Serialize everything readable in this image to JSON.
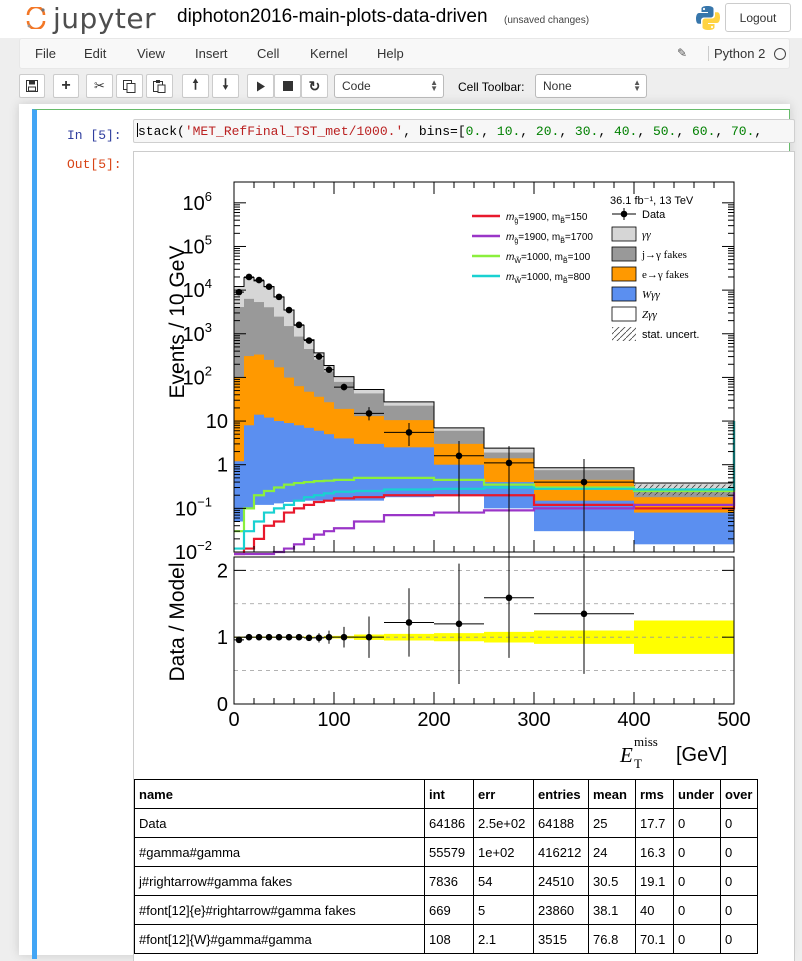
{
  "header": {
    "logo_text": "jupyter",
    "notebook_title": "diphoton2016-main-plots-data-driven",
    "save_status": "(unsaved changes)",
    "logout_label": "Logout"
  },
  "menu": {
    "items": [
      "File",
      "Edit",
      "View",
      "Insert",
      "Cell",
      "Kernel",
      "Help"
    ],
    "kernel_name": "Python 2"
  },
  "toolbar": {
    "cell_type": "Code",
    "cell_toolbar_label": "Cell Toolbar:",
    "cell_toolbar_value": "None"
  },
  "cell": {
    "in_prompt": "In [5]:",
    "out_prompt": "Out[5]:",
    "code_prefix": "stack(",
    "code_string": "'MET_RefFinal_TST_met/1000.'",
    "code_mid": ", bins=[",
    "code_bins": [
      "0.",
      "10.",
      "20.",
      "30.",
      "40.",
      "50.",
      "60.",
      "70."
    ]
  },
  "chart_data": {
    "type": "bar",
    "subtype": "stacked-histogram-with-ratio",
    "annotation": "36.1 fb⁻¹, 13 TeV",
    "top_ylabel": "Events / 10 GeV",
    "bottom_ylabel": "Data / Model",
    "xlabel_symbol": "E",
    "xlabel_sub": "T",
    "xlabel_sup": "miss",
    "xlabel_unit": "[GeV]",
    "xlim": [
      0,
      500
    ],
    "ylim_top": [
      0.01,
      3000000
    ],
    "yscale_top": "log",
    "ylim_bottom": [
      0,
      2.2
    ],
    "x_ticks": [
      "0",
      "100",
      "200",
      "300",
      "400",
      "500"
    ],
    "y_ticks_top": [
      {
        "v": 1000000,
        "base": "10",
        "exp": "6"
      },
      {
        "v": 100000,
        "base": "10",
        "exp": "5"
      },
      {
        "v": 10000,
        "base": "10",
        "exp": "4"
      },
      {
        "v": 1000,
        "base": "10",
        "exp": "3"
      },
      {
        "v": 100,
        "base": "10",
        "exp": "2"
      },
      {
        "v": 10,
        "base": "10",
        "exp": ""
      },
      {
        "v": 1,
        "base": "1",
        "exp": ""
      },
      {
        "v": 0.1,
        "base": "10",
        "exp": "−1"
      },
      {
        "v": 0.01,
        "base": "10",
        "exp": "−2"
      }
    ],
    "y_ticks_bottom": [
      "0",
      "1",
      "2"
    ],
    "bin_edges": [
      0,
      10,
      20,
      30,
      40,
      50,
      60,
      70,
      80,
      90,
      100,
      120,
      150,
      200,
      250,
      300,
      400,
      500
    ],
    "stack": [
      {
        "name": "Wγγ",
        "color": "#5b8ff0",
        "values": [
          1.2,
          8,
          14,
          12,
          10,
          9,
          8,
          7,
          6,
          5,
          4,
          3,
          2.5,
          1,
          0.4,
          0.15,
          0.08
        ]
      },
      {
        "name": "e→γ fakes",
        "color": "#ff9900",
        "values": [
          100,
          300,
          320,
          240,
          160,
          90,
          55,
          40,
          30,
          22,
          15,
          10,
          8,
          2,
          1,
          0.3,
          0.1
        ]
      },
      {
        "name": "j→γ fakes",
        "color": "#999999",
        "values": [
          4000,
          6000,
          5000,
          3800,
          2300,
          1400,
          800,
          400,
          220,
          110,
          60,
          30,
          12,
          3,
          0.5,
          0.3,
          0.1
        ]
      },
      {
        "name": "γγ",
        "color": "#d6d6d6",
        "values": [
          8000,
          13000,
          11000,
          8000,
          4500,
          2000,
          700,
          280,
          110,
          50,
          25,
          10,
          5,
          1,
          0.5,
          0.1,
          0.1
        ]
      }
    ],
    "zgg": {
      "name": "Zγγ",
      "values": [
        0.05,
        0.1,
        0.12,
        0.12,
        0.13,
        0.14,
        0.15,
        0.15,
        0.15,
        0.15,
        0.15,
        0.15,
        0.18,
        0.2,
        0.1,
        0.03,
        0.015
      ]
    },
    "data": {
      "name": "Data",
      "points": [
        {
          "x": 5,
          "y": 9000,
          "r": 0.96
        },
        {
          "x": 15,
          "y": 20000,
          "r": 1.0
        },
        {
          "x": 25,
          "y": 17000,
          "r": 1.0
        },
        {
          "x": 35,
          "y": 12000,
          "r": 1.0
        },
        {
          "x": 45,
          "y": 7000,
          "r": 1.0
        },
        {
          "x": 55,
          "y": 3500,
          "r": 1.0
        },
        {
          "x": 65,
          "y": 1600,
          "r": 1.0
        },
        {
          "x": 75,
          "y": 700,
          "r": 0.99
        },
        {
          "x": 85,
          "y": 300,
          "r": 0.99
        },
        {
          "x": 95,
          "y": 150,
          "r": 1.0
        },
        {
          "x": 110,
          "y": 60,
          "r": 1.0
        },
        {
          "x": 135,
          "y": 15,
          "r": 1.0
        },
        {
          "x": 175,
          "y": 5.5,
          "r": 1.22
        },
        {
          "x": 225,
          "y": 1.6,
          "r": 1.2
        },
        {
          "x": 275,
          "y": 1.1,
          "r": 1.59
        },
        {
          "x": 350,
          "y": 0.4,
          "r": 1.35
        }
      ]
    },
    "signals": [
      {
        "label_a": "m",
        "label_a_sub": "g̃",
        "label_b": "=1900, m",
        "label_b_sub": "B̃",
        "label_c": "=150",
        "color": "#e8192c",
        "values": [
          0.008,
          0.012,
          0.02,
          0.04,
          0.05,
          0.08,
          0.1,
          0.12,
          0.14,
          0.15,
          0.17,
          0.18,
          0.2,
          0.2,
          0.2,
          0.12,
          0.1
        ]
      },
      {
        "label_a": "m",
        "label_a_sub": "g̃",
        "label_b": "=1900, m",
        "label_b_sub": "B̃",
        "label_c": "=1700",
        "color": "#9a35c8",
        "values": [
          0.005,
          0.006,
          0.007,
          0.008,
          0.01,
          0.012,
          0.015,
          0.02,
          0.025,
          0.03,
          0.035,
          0.05,
          0.07,
          0.08,
          0.09,
          0.1,
          0.12
        ]
      },
      {
        "label_a": "m",
        "label_a_sub": "W̃",
        "label_b": "=1000, m",
        "label_b_sub": "B̃",
        "label_c": "=100",
        "color": "#8bef3c",
        "values": [
          0.03,
          0.1,
          0.2,
          0.25,
          0.3,
          0.35,
          0.38,
          0.4,
          0.42,
          0.43,
          0.45,
          0.5,
          0.5,
          0.45,
          0.35,
          0.3,
          0.25
        ]
      },
      {
        "label_a": "m",
        "label_a_sub": "W̃",
        "label_b": "=1000, m",
        "label_b_sub": "B̃",
        "label_c": "=800",
        "color": "#19d1d1",
        "values": [
          0.012,
          0.03,
          0.05,
          0.08,
          0.1,
          0.12,
          0.15,
          0.18,
          0.2,
          0.22,
          0.24,
          0.25,
          0.27,
          0.28,
          0.3,
          0.28,
          0.27
        ]
      }
    ],
    "stat_label": "stat. uncert."
  },
  "table": {
    "headers": [
      "name",
      "int",
      "err",
      "entries",
      "mean",
      "rms",
      "under",
      "over"
    ],
    "rows": [
      [
        "Data",
        "64186",
        "2.5e+02",
        "64188",
        "25",
        "17.7",
        "0",
        "0"
      ],
      [
        "#gamma#gamma",
        "55579",
        "1e+02",
        "416212",
        "24",
        "16.3",
        "0",
        "0"
      ],
      [
        "j#rightarrow#gamma fakes",
        "7836",
        "54",
        "24510",
        "30.5",
        "19.1",
        "0",
        "0"
      ],
      [
        "#font[12]{e}#rightarrow#gamma fakes",
        "669",
        "5",
        "23860",
        "38.1",
        "40",
        "0",
        "0"
      ],
      [
        "#font[12]{W}#gamma#gamma",
        "108",
        "2.1",
        "3515",
        "76.8",
        "70.1",
        "0",
        "0"
      ]
    ]
  }
}
